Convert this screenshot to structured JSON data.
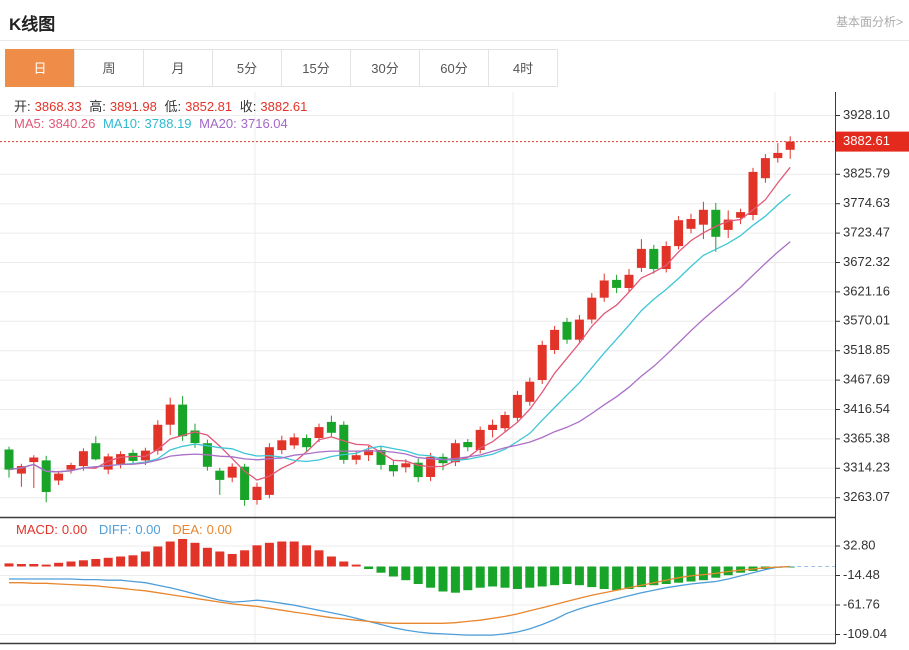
{
  "header": {
    "title": "K线图",
    "link": "基本面分析>"
  },
  "tabs": {
    "items": [
      "日",
      "周",
      "月",
      "5分",
      "15分",
      "30分",
      "60分",
      "4时"
    ],
    "active": "日"
  },
  "ohlc": {
    "open_label": "开:",
    "open": "3868.33",
    "high_label": "高:",
    "high": "3891.98",
    "low_label": "低:",
    "low": "3852.81",
    "close_label": "收:",
    "close": "3882.61"
  },
  "ma_info": {
    "ma5_label": "MA5:",
    "ma5": "3840.26",
    "ma10_label": "MA10:",
    "ma10": "3788.19",
    "ma20_label": "MA20:",
    "ma20": "3716.04"
  },
  "macd_info": {
    "macd_label": "MACD:",
    "macd": "0.00",
    "diff_label": "DIFF:",
    "diff": "0.00",
    "dea_label": "DEA:",
    "dea": "0.00"
  },
  "colors": {
    "up": "#e23329",
    "down": "#18a329",
    "ma5": "#e25878",
    "ma10": "#3ec6d6",
    "ma20": "#ab6fc6",
    "diff_line": "#4f9ed9",
    "dea_line": "#e8872e",
    "grid": "#ececec",
    "axis": "#3c3c3c",
    "tick_text": "#333",
    "price_tag_bg": "#e42a1d",
    "price_tag_text": "#ffffff",
    "price_dotted": "#e8342b",
    "dash_zero": "#9fc3e8",
    "tab_active": "#ef8c47"
  },
  "chart_data": {
    "type": "candlestick+macd",
    "title": "K线图 daily candlestick with MA5/MA10/MA20 and MACD",
    "legend_position": "top-left overlay",
    "grid": true,
    "main": {
      "yticks": [
        3928.1,
        3825.79,
        3774.63,
        3723.47,
        3672.32,
        3621.16,
        3570.01,
        3518.85,
        3467.69,
        3416.54,
        3365.38,
        3314.23,
        3263.07
      ],
      "ylim": [
        3229,
        3969
      ],
      "price_line": 3882.61,
      "ma_windows": [
        5,
        10,
        20
      ],
      "candles_format": [
        "open",
        "high",
        "low",
        "close"
      ],
      "candles": [
        [
          3347,
          3352,
          3298,
          3312
        ],
        [
          3305,
          3322,
          3282,
          3318
        ],
        [
          3325,
          3337,
          3280,
          3333
        ],
        [
          3328,
          3336,
          3255,
          3273
        ],
        [
          3293,
          3310,
          3285,
          3305
        ],
        [
          3312,
          3324,
          3305,
          3320
        ],
        [
          3318,
          3349,
          3310,
          3344
        ],
        [
          3358,
          3370,
          3328,
          3330
        ],
        [
          3312,
          3340,
          3304,
          3335
        ],
        [
          3321,
          3344,
          3314,
          3339
        ],
        [
          3341,
          3347,
          3322,
          3327
        ],
        [
          3328,
          3350,
          3320,
          3345
        ],
        [
          3345,
          3398,
          3338,
          3390
        ],
        [
          3390,
          3437,
          3372,
          3425
        ],
        [
          3425,
          3440,
          3362,
          3370
        ],
        [
          3380,
          3392,
          3350,
          3358
        ],
        [
          3358,
          3364,
          3310,
          3317
        ],
        [
          3310,
          3315,
          3268,
          3294
        ],
        [
          3298,
          3323,
          3290,
          3317
        ],
        [
          3317,
          3322,
          3249,
          3259
        ],
        [
          3259,
          3289,
          3251,
          3282
        ],
        [
          3268,
          3358,
          3262,
          3351
        ],
        [
          3346,
          3371,
          3339,
          3363
        ],
        [
          3354,
          3375,
          3348,
          3368
        ],
        [
          3367,
          3373,
          3343,
          3351
        ],
        [
          3367,
          3392,
          3360,
          3386
        ],
        [
          3395,
          3406,
          3369,
          3376
        ],
        [
          3390,
          3396,
          3322,
          3329
        ],
        [
          3329,
          3345,
          3321,
          3337
        ],
        [
          3337,
          3353,
          3327,
          3346
        ],
        [
          3346,
          3352,
          3312,
          3320
        ],
        [
          3320,
          3327,
          3300,
          3309
        ],
        [
          3316,
          3330,
          3307,
          3323
        ],
        [
          3324,
          3331,
          3290,
          3299
        ],
        [
          3299,
          3341,
          3292,
          3334
        ],
        [
          3334,
          3340,
          3311,
          3323
        ],
        [
          3325,
          3364,
          3318,
          3358
        ],
        [
          3360,
          3365,
          3344,
          3351
        ],
        [
          3346,
          3387,
          3340,
          3381
        ],
        [
          3381,
          3399,
          3368,
          3390
        ],
        [
          3384,
          3413,
          3378,
          3407
        ],
        [
          3402,
          3449,
          3396,
          3442
        ],
        [
          3430,
          3472,
          3423,
          3465
        ],
        [
          3468,
          3536,
          3461,
          3529
        ],
        [
          3520,
          3562,
          3513,
          3555
        ],
        [
          3569,
          3576,
          3531,
          3538
        ],
        [
          3538,
          3581,
          3531,
          3573
        ],
        [
          3573,
          3619,
          3566,
          3611
        ],
        [
          3611,
          3653,
          3604,
          3641
        ],
        [
          3642,
          3651,
          3619,
          3628
        ],
        [
          3628,
          3661,
          3621,
          3651
        ],
        [
          3663,
          3713,
          3656,
          3696
        ],
        [
          3696,
          3703,
          3653,
          3661
        ],
        [
          3661,
          3709,
          3655,
          3701
        ],
        [
          3701,
          3753,
          3695,
          3746
        ],
        [
          3731,
          3757,
          3723,
          3748
        ],
        [
          3738,
          3778,
          3713,
          3764
        ],
        [
          3764,
          3776,
          3691,
          3717
        ],
        [
          3729,
          3763,
          3715,
          3747
        ],
        [
          3750,
          3766,
          3739,
          3760
        ],
        [
          3755,
          3837,
          3746,
          3830
        ],
        [
          3819,
          3861,
          3811,
          3854
        ],
        [
          3854,
          3880,
          3846,
          3863
        ],
        [
          3868.33,
          3891.98,
          3852.81,
          3882.61
        ]
      ]
    },
    "macd": {
      "yticks": [
        32.8,
        -14.48,
        -61.76,
        -109.04
      ],
      "hist": [
        5,
        4,
        4,
        3,
        6,
        8,
        10,
        12,
        14,
        16,
        18,
        24,
        32,
        40,
        44,
        38,
        30,
        24,
        20,
        26,
        34,
        38,
        40,
        40,
        34,
        26,
        16,
        8,
        3,
        -4,
        -10,
        -16,
        -22,
        -28,
        -34,
        -40,
        -42,
        -38,
        -34,
        -32,
        -34,
        -36,
        -34,
        -32,
        -30,
        -28,
        -30,
        -33,
        -36,
        -38,
        -36,
        -33,
        -30,
        -28,
        -26,
        -24,
        -22,
        -18,
        -14,
        -10,
        -7,
        -4,
        -2,
        -0.5
      ],
      "diff": [
        -20,
        -20,
        -20,
        -20,
        -20,
        -20,
        -21,
        -21,
        -22,
        -22,
        -24,
        -26,
        -30,
        -34,
        -39,
        -44,
        -49,
        -54,
        -57,
        -56,
        -54,
        -56,
        -59,
        -62,
        -66,
        -70,
        -74,
        -78,
        -83,
        -88,
        -93,
        -98,
        -102,
        -105,
        -107,
        -108,
        -109,
        -110,
        -110,
        -110,
        -108,
        -105,
        -100,
        -93,
        -85,
        -75,
        -68,
        -62,
        -57,
        -52,
        -47,
        -42,
        -38,
        -34,
        -31,
        -28,
        -26,
        -24,
        -20,
        -15,
        -10,
        -5,
        -1,
        0
      ],
      "dea": [
        -26,
        -26,
        -27,
        -27,
        -28,
        -29,
        -30,
        -31,
        -33,
        -35,
        -37,
        -39,
        -42,
        -45,
        -48,
        -51,
        -54,
        -57,
        -60,
        -62,
        -64,
        -67,
        -70,
        -73,
        -76,
        -79,
        -82,
        -84,
        -86,
        -88,
        -90,
        -91,
        -91,
        -91,
        -91,
        -91,
        -90,
        -88,
        -86,
        -83,
        -80,
        -76,
        -71,
        -66,
        -61,
        -56,
        -51,
        -46,
        -42,
        -38,
        -34,
        -30,
        -26,
        -22,
        -18,
        -15,
        -13,
        -11,
        -8,
        -6,
        -4,
        -2,
        -1,
        0
      ]
    }
  }
}
